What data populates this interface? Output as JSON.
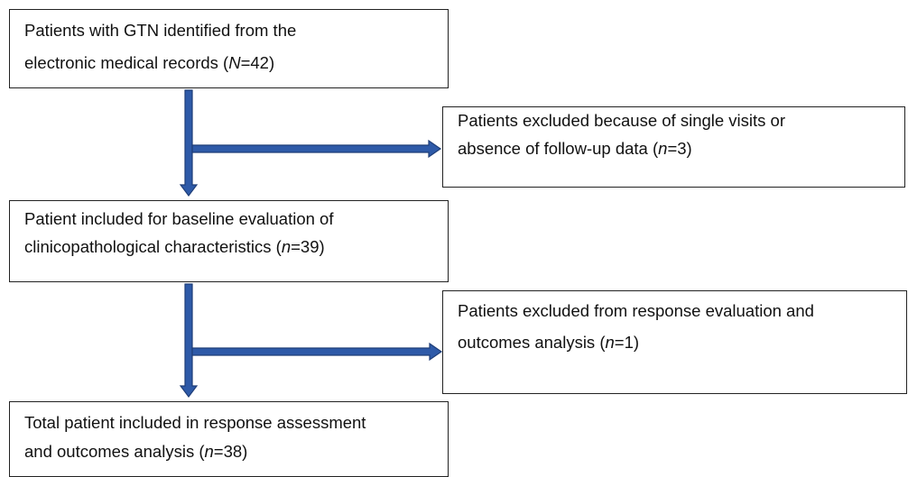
{
  "nodes": [
    {
      "lines": [
        [
          "Patients with GTN identified from the"
        ],
        [
          "electronic medical records (",
          "N",
          "=42)"
        ]
      ]
    },
    {
      "lines": [
        [
          "Patients excluded because of single visits or"
        ],
        [
          "absence of follow-up data (",
          "n",
          "=3)"
        ]
      ]
    },
    {
      "lines": [
        [
          "Patient included for baseline evaluation of"
        ],
        [
          "clinicopathological characteristics (",
          "n",
          "=39)"
        ]
      ]
    },
    {
      "lines": [
        [
          "Patients excluded from response evaluation and"
        ],
        [
          "outcomes analysis (",
          "n",
          "=1)"
        ]
      ]
    },
    {
      "lines": [
        [
          "Total patient included in response assessment"
        ],
        [
          "and outcomes analysis (",
          "n",
          "=38)"
        ]
      ]
    }
  ]
}
